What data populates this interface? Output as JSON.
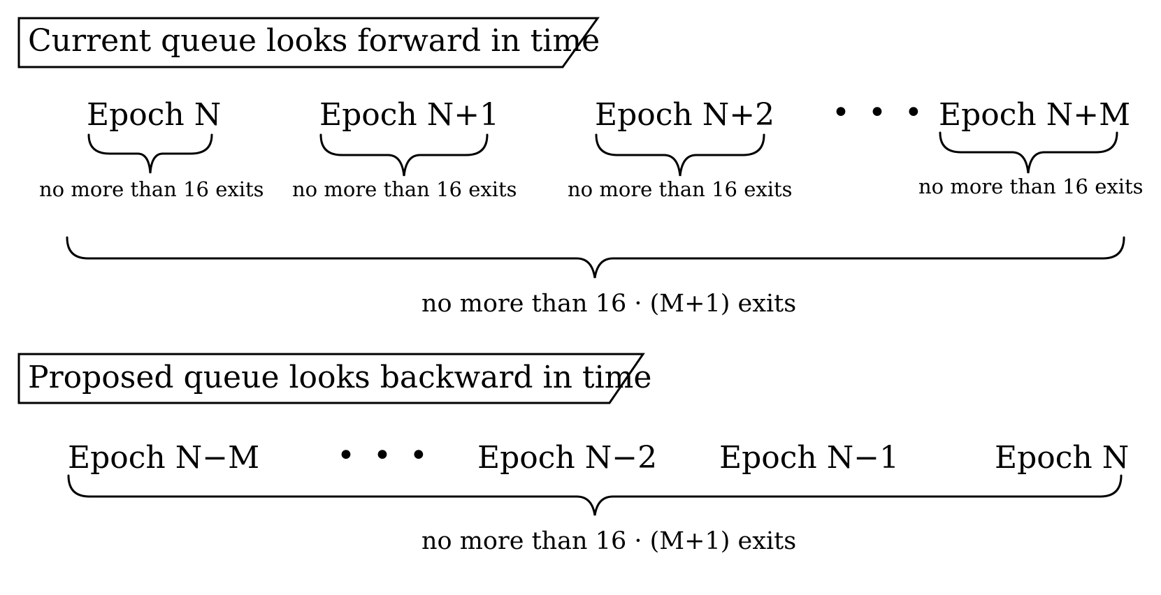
{
  "section_current": {
    "title": "Current queue looks forward in time",
    "epochs": [
      "Epoch N",
      "Epoch N+1",
      "Epoch N+2",
      "Epoch N+M"
    ],
    "ellipsis": "• • •",
    "per_epoch_label": "no more than 16 exits",
    "total_label": "no more than 16 · (M+1) exits"
  },
  "section_proposed": {
    "title": "Proposed queue looks backward in time",
    "epochs": [
      "Epoch N−M",
      "Epoch N−2",
      "Epoch N−1",
      "Epoch N"
    ],
    "ellipsis": "• • •",
    "total_label": "no more than 16 · (M+1) exits"
  }
}
